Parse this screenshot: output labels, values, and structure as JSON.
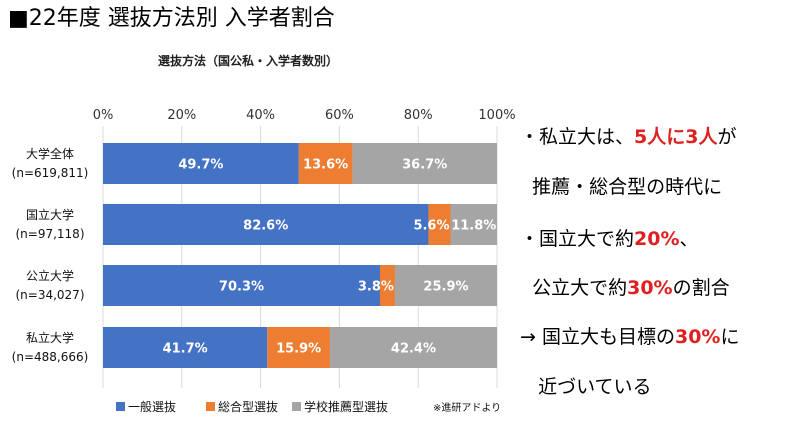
{
  "page_title": "■22年度 選抜方法別 入学者割合",
  "colors": {
    "series1": "#4472c4",
    "series2": "#ed7d31",
    "series3": "#a5a5a5",
    "highlight": "#e02020",
    "grid": "#d9d9d9"
  },
  "chart_data": {
    "type": "bar",
    "orientation": "horizontal",
    "stacked": true,
    "title": "選抜方法（国公私・入学者数別）",
    "x_ticks": [
      "0%",
      "20%",
      "40%",
      "60%",
      "80%",
      "100%"
    ],
    "xlim": [
      0,
      100
    ],
    "grid": true,
    "legend_position": "bottom",
    "categories": [
      {
        "name": "大学全体",
        "n": "(n=619,811)"
      },
      {
        "name": "国立大学",
        "n": "(n=97,118)"
      },
      {
        "name": "公立大学",
        "n": "(n=34,027)"
      },
      {
        "name": "私立大学",
        "n": "(n=488,666)"
      }
    ],
    "series": [
      {
        "name": "一般選抜",
        "values": [
          49.7,
          82.6,
          70.3,
          41.7
        ],
        "labels": [
          "49.7%",
          "82.6%",
          "70.3%",
          "41.7%"
        ]
      },
      {
        "name": "総合型選抜",
        "values": [
          13.6,
          5.6,
          3.8,
          15.9
        ],
        "labels": [
          "13.6%",
          "5.6%",
          "3.8%",
          "15.9%"
        ]
      },
      {
        "name": "学校推薦型選抜",
        "values": [
          36.7,
          11.8,
          25.9,
          42.4
        ],
        "labels": [
          "36.7%",
          "11.8%",
          "25.9%",
          "42.4%"
        ]
      }
    ],
    "source": "※進研アドより"
  },
  "notes": [
    {
      "parts": [
        {
          "text": "・私立大は、",
          "hl": false
        },
        {
          "text": "5人に3人",
          "hl": true
        },
        {
          "text": "が",
          "hl": false
        }
      ]
    },
    {
      "parts": [
        {
          "text": "  推薦・総合型の時代に",
          "hl": false
        }
      ]
    },
    {
      "parts": [
        {
          "text": "・国立大で約",
          "hl": false
        },
        {
          "text": "20%",
          "hl": true
        },
        {
          "text": "、",
          "hl": false
        }
      ]
    },
    {
      "parts": [
        {
          "text": "  公立大で約",
          "hl": false
        },
        {
          "text": "30%",
          "hl": true
        },
        {
          "text": "の割合",
          "hl": false
        }
      ]
    },
    {
      "parts": [
        {
          "text": "→ 国立大も目標の",
          "hl": false
        },
        {
          "text": "30%",
          "hl": true
        },
        {
          "text": "に",
          "hl": false
        }
      ]
    },
    {
      "parts": [
        {
          "text": "   近づいている",
          "hl": false
        }
      ]
    }
  ]
}
